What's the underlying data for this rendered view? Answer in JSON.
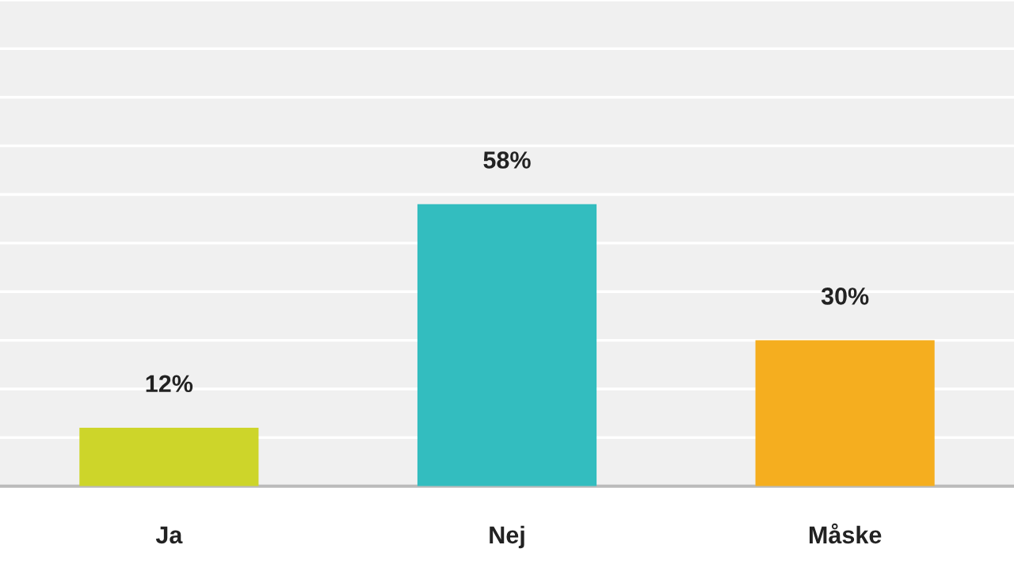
{
  "chart_data": {
    "type": "bar",
    "categories": [
      "Ja",
      "Nej",
      "Måske"
    ],
    "values": [
      12,
      58,
      30
    ],
    "colors": [
      "#cdd52a",
      "#33bdbf",
      "#f5ae1f"
    ],
    "value_labels": [
      "12%",
      "58%",
      "30%"
    ],
    "ylim": [
      0,
      100
    ],
    "yticks": [
      {
        "value": 0,
        "label": null
      },
      {
        "value": 10,
        "label": null
      },
      {
        "value": 20,
        "label": null
      },
      {
        "value": 30,
        "label": null
      },
      {
        "value": 40,
        "label": null
      },
      {
        "value": 50,
        "label": null
      },
      {
        "value": 60,
        "label": null
      },
      {
        "value": 70,
        "label": null
      },
      {
        "value": 80,
        "label": null
      },
      {
        "value": 90,
        "label": null
      },
      {
        "value": 100,
        "label": null
      }
    ],
    "grid": "y",
    "tick_labels": "x"
  }
}
